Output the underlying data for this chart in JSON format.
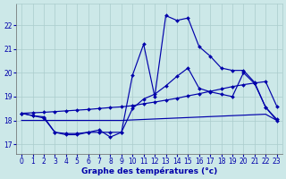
{
  "title": "Graphe des températures (°c)",
  "bg_color": "#cce8e8",
  "grid_color": "#aacccc",
  "line_color": "#0000aa",
  "xlim": [
    -0.5,
    23.5
  ],
  "ylim": [
    16.6,
    22.9
  ],
  "yticks": [
    17,
    18,
    19,
    20,
    21,
    22
  ],
  "xticks": [
    0,
    1,
    2,
    3,
    4,
    5,
    6,
    7,
    8,
    9,
    10,
    11,
    12,
    13,
    14,
    15,
    16,
    17,
    18,
    19,
    20,
    21,
    22,
    23
  ],
  "s1": [
    18.3,
    18.2,
    18.1,
    17.5,
    17.4,
    17.4,
    17.5,
    17.6,
    17.3,
    17.5,
    19.9,
    21.2,
    19.0,
    22.4,
    22.2,
    22.3,
    21.1,
    20.7,
    20.2,
    20.1,
    20.1,
    19.6,
    18.55,
    18.05
  ],
  "s2": [
    18.3,
    18.2,
    18.15,
    17.5,
    17.45,
    17.45,
    17.5,
    17.5,
    17.5,
    17.5,
    18.5,
    18.9,
    19.1,
    19.45,
    19.85,
    20.2,
    19.35,
    19.2,
    19.1,
    19.0,
    20.0,
    19.55,
    18.55,
    18.0
  ],
  "s3": [
    18.3,
    18.32,
    18.34,
    18.37,
    18.4,
    18.43,
    18.46,
    18.5,
    18.54,
    18.57,
    18.62,
    18.7,
    18.77,
    18.85,
    18.93,
    19.03,
    19.12,
    19.22,
    19.32,
    19.42,
    19.5,
    19.57,
    19.63,
    18.6
  ],
  "s4": [
    18.0,
    18.0,
    18.0,
    18.0,
    18.0,
    18.0,
    18.0,
    18.0,
    18.0,
    18.0,
    18.02,
    18.04,
    18.06,
    18.08,
    18.1,
    18.12,
    18.14,
    18.16,
    18.18,
    18.2,
    18.22,
    18.24,
    18.26,
    18.0
  ],
  "xlabel_fontsize": 6.5,
  "tick_fontsize": 5.5
}
